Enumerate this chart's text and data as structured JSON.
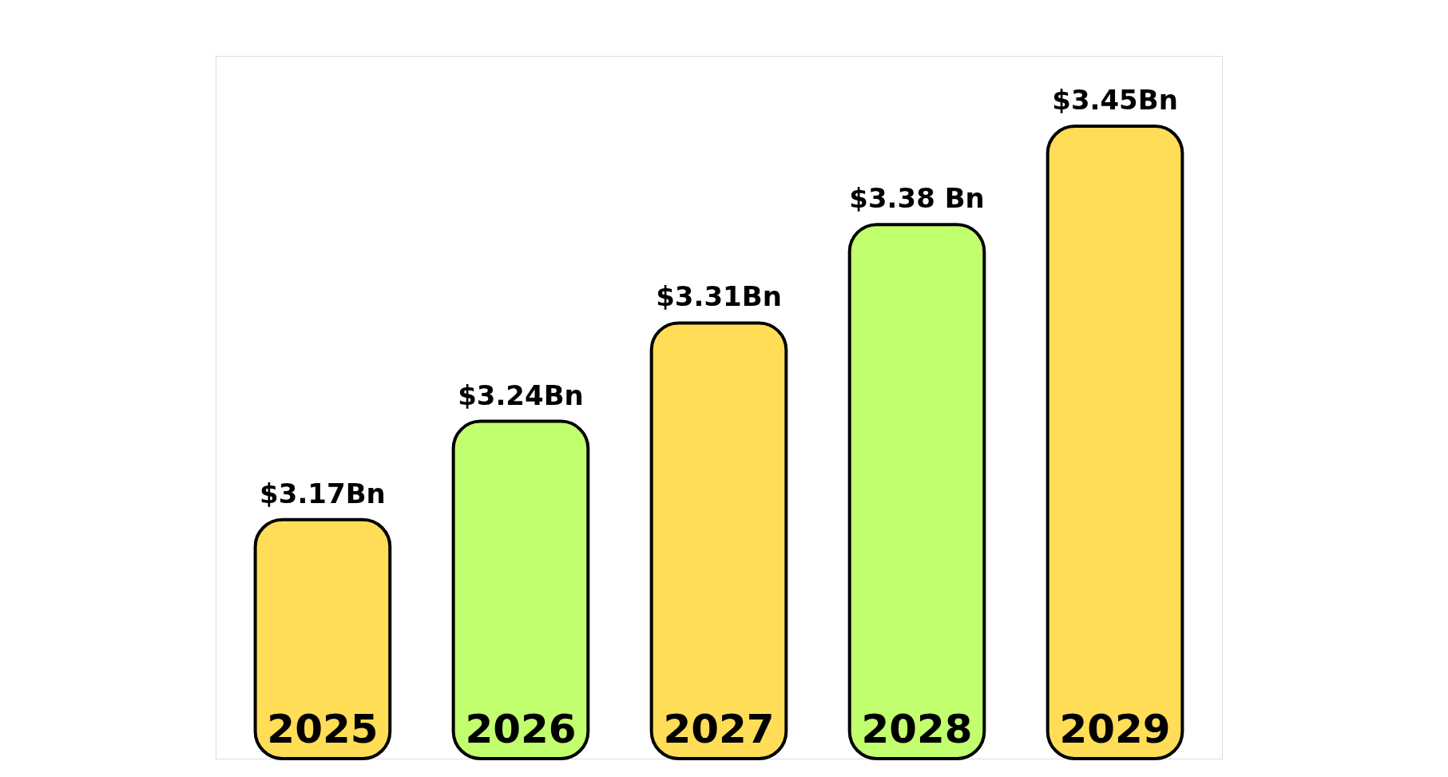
{
  "chart_data": {
    "type": "bar",
    "categories": [
      "2025",
      "2026",
      "2027",
      "2028",
      "2029"
    ],
    "values": [
      3.17,
      3.24,
      3.31,
      3.38,
      3.45
    ],
    "colors": [
      "#ffdd57",
      "#c2ff6e",
      "#ffdd57",
      "#c2ff6e",
      "#ffdd57"
    ],
    "value_labels": [
      "$3.17Bn",
      "$3.24Bn",
      "$3.31Bn",
      "$3.38 Bn",
      "$3.45Bn"
    ],
    "ylim": [
      3.0,
      3.5
    ],
    "tick_labels": false,
    "grid": false
  }
}
